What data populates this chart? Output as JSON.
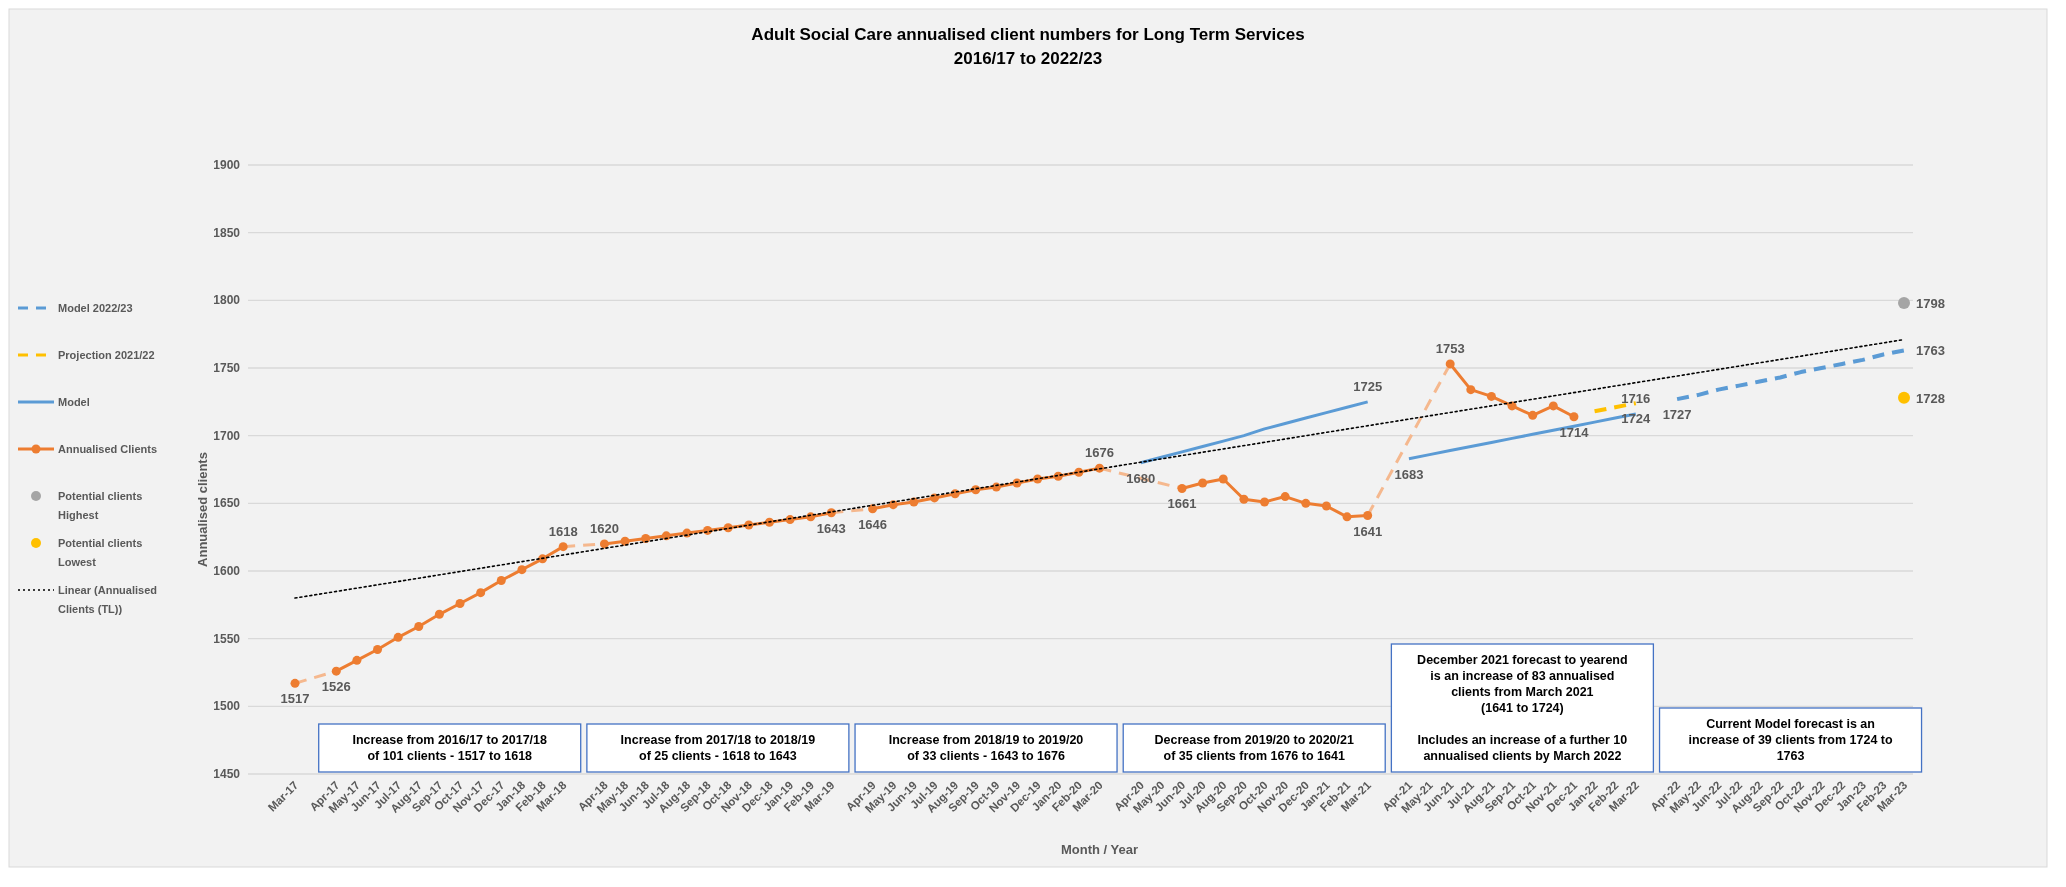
{
  "chart_data": {
    "type": "line",
    "title": "Adult Social Care annualised client numbers for Long Term Services",
    "subtitle": "2016/17 to 2022/23",
    "xlabel": "Month / Year",
    "ylabel": "Annualised clients",
    "categories": [
      "Mar-17",
      null,
      "Apr-17",
      "May-17",
      "Jun-17",
      "Jul-17",
      "Aug-17",
      "Sep-17",
      "Oct-17",
      "Nov-17",
      "Dec-17",
      "Jan-18",
      "Feb-18",
      "Mar-18",
      null,
      "Apr-18",
      "May-18",
      "Jun-18",
      "Jul-18",
      "Aug-18",
      "Sep-18",
      "Oct-18",
      "Nov-18",
      "Dec-18",
      "Jan-19",
      "Feb-19",
      "Mar-19",
      null,
      "Apr-19",
      "May-19",
      "Jun-19",
      "Jul-19",
      "Aug-19",
      "Sep-19",
      "Oct-19",
      "Nov-19",
      "Dec-19",
      "Jan-20",
      "Feb-20",
      "Mar-20",
      null,
      "Apr-20",
      "May-20",
      "Jun-20",
      "Jul-20",
      "Aug-20",
      "Sep-20",
      "Oct-20",
      "Nov-20",
      "Dec-20",
      "Jan-21",
      "Feb-21",
      "Mar-21",
      null,
      "Apr-21",
      "May-21",
      "Jun-21",
      "Jul-21",
      "Aug-21",
      "Sep-21",
      "Oct-21",
      "Nov-21",
      "Dec-21",
      "Jan-22",
      "Feb-22",
      "Mar-22",
      null,
      "Apr-22",
      "May-22",
      "Jun-22",
      "Jul-22",
      "Aug-22",
      "Sep-22",
      "Oct-22",
      "Nov-22",
      "Dec-22",
      "Jan-23",
      "Feb-23",
      "Mar-23"
    ],
    "series": [
      {
        "name": "Model 2022/23",
        "type": "line",
        "color": "#5b9bd5",
        "line_style": "dashed",
        "values": [
          null,
          null,
          null,
          null,
          null,
          null,
          null,
          null,
          null,
          null,
          null,
          null,
          null,
          null,
          null,
          null,
          null,
          null,
          null,
          null,
          null,
          null,
          null,
          null,
          null,
          null,
          null,
          null,
          null,
          null,
          null,
          null,
          null,
          null,
          null,
          null,
          null,
          null,
          null,
          null,
          null,
          null,
          null,
          null,
          null,
          null,
          null,
          null,
          null,
          null,
          null,
          null,
          null,
          null,
          null,
          null,
          null,
          null,
          null,
          null,
          null,
          null,
          null,
          null,
          null,
          null,
          null,
          1727,
          1730,
          1734,
          1737,
          1740,
          1743,
          1747,
          1750,
          1753,
          1756,
          1760,
          1763
        ],
        "value_labels": [
          null,
          null,
          null,
          null,
          null,
          null,
          null,
          null,
          null,
          null,
          null,
          null,
          null,
          null,
          null,
          null,
          null,
          null,
          null,
          null,
          null,
          null,
          null,
          null,
          null,
          null,
          null,
          null,
          null,
          null,
          null,
          null,
          null,
          null,
          null,
          null,
          null,
          null,
          null,
          null,
          null,
          null,
          null,
          null,
          null,
          null,
          null,
          null,
          null,
          null,
          null,
          null,
          null,
          null,
          null,
          null,
          null,
          null,
          null,
          null,
          null,
          null,
          null,
          null,
          null,
          null,
          null,
          "1727",
          null,
          null,
          null,
          null,
          null,
          null,
          null,
          null,
          null,
          null,
          "1763"
        ]
      },
      {
        "name": "Projection 2021/22",
        "type": "line",
        "color": "#ffc000",
        "line_style": "dashed",
        "values": [
          null,
          null,
          null,
          null,
          null,
          null,
          null,
          null,
          null,
          null,
          null,
          null,
          null,
          null,
          null,
          null,
          null,
          null,
          null,
          null,
          null,
          null,
          null,
          null,
          null,
          null,
          null,
          null,
          null,
          null,
          null,
          null,
          null,
          null,
          null,
          null,
          null,
          null,
          null,
          null,
          null,
          null,
          null,
          null,
          null,
          null,
          null,
          null,
          null,
          null,
          null,
          null,
          null,
          null,
          null,
          null,
          null,
          null,
          null,
          null,
          null,
          null,
          null,
          1718,
          1721,
          1724,
          null,
          null,
          null,
          null,
          null,
          null,
          null,
          null,
          null,
          null,
          null,
          null,
          null
        ],
        "value_labels": [
          null,
          null,
          null,
          null,
          null,
          null,
          null,
          null,
          null,
          null,
          null,
          null,
          null,
          null,
          null,
          null,
          null,
          null,
          null,
          null,
          null,
          null,
          null,
          null,
          null,
          null,
          null,
          null,
          null,
          null,
          null,
          null,
          null,
          null,
          null,
          null,
          null,
          null,
          null,
          null,
          null,
          null,
          null,
          null,
          null,
          null,
          null,
          null,
          null,
          null,
          null,
          null,
          null,
          null,
          null,
          null,
          null,
          null,
          null,
          null,
          null,
          null,
          null,
          null,
          null,
          "1724",
          null,
          null,
          null,
          null,
          null,
          null,
          null,
          null,
          null,
          null,
          null,
          null,
          null
        ]
      },
      {
        "name": "Model",
        "type": "line",
        "color": "#5b9bd5",
        "line_style": "solid",
        "values": [
          null,
          null,
          null,
          null,
          null,
          null,
          null,
          null,
          null,
          null,
          null,
          null,
          null,
          null,
          null,
          null,
          null,
          null,
          null,
          null,
          null,
          null,
          null,
          null,
          null,
          null,
          null,
          null,
          null,
          null,
          null,
          null,
          null,
          null,
          null,
          null,
          null,
          null,
          null,
          null,
          null,
          1680,
          1684,
          1688,
          1692,
          1696,
          1700,
          1705,
          1709,
          1713,
          1717,
          1721,
          1725,
          null,
          1683,
          1686,
          1689,
          1692,
          1695,
          1698,
          1701,
          1704,
          1707,
          1710,
          1713,
          1716,
          null,
          null,
          null,
          null,
          null,
          null,
          null,
          null,
          null,
          null,
          null,
          null,
          null
        ],
        "value_labels": [
          null,
          null,
          null,
          null,
          null,
          null,
          null,
          null,
          null,
          null,
          null,
          null,
          null,
          null,
          null,
          null,
          null,
          null,
          null,
          null,
          null,
          null,
          null,
          null,
          null,
          null,
          null,
          null,
          null,
          null,
          null,
          null,
          null,
          null,
          null,
          null,
          null,
          null,
          null,
          null,
          null,
          "1680",
          null,
          null,
          null,
          null,
          null,
          null,
          null,
          null,
          null,
          null,
          "1725",
          null,
          "1683",
          null,
          null,
          null,
          null,
          null,
          null,
          null,
          null,
          null,
          null,
          "1716",
          null,
          null,
          null,
          null,
          null,
          null,
          null,
          null,
          null,
          null,
          null,
          null,
          null
        ]
      },
      {
        "name": "Annualised Clients",
        "type": "line",
        "color": "#ed7d31",
        "marker": "circle",
        "line_style": "solid",
        "values": [
          1517,
          null,
          1526,
          1534,
          1542,
          1551,
          1559,
          1568,
          1576,
          1584,
          1593,
          1601,
          1609,
          1618,
          null,
          1620,
          1622,
          1624,
          1626,
          1628,
          1630,
          1632,
          1634,
          1636,
          1638,
          1640,
          1643,
          null,
          1646,
          1649,
          1651,
          1654,
          1657,
          1660,
          1662,
          1665,
          1668,
          1670,
          1673,
          1676,
          null,
          null,
          null,
          1661,
          1665,
          1668,
          1653,
          1651,
          1655,
          1650,
          1648,
          1640,
          1641,
          null,
          null,
          null,
          1753,
          1734,
          1729,
          1722,
          1715,
          1722,
          1714,
          null,
          null,
          null,
          null,
          null,
          null,
          null,
          null,
          null,
          null,
          null,
          null,
          null,
          null,
          null,
          null
        ],
        "value_labels": [
          "1517",
          null,
          "1526",
          null,
          null,
          null,
          null,
          null,
          null,
          null,
          null,
          null,
          null,
          "1618",
          null,
          "1620",
          null,
          null,
          null,
          null,
          null,
          null,
          null,
          null,
          null,
          null,
          "1643",
          null,
          "1646",
          null,
          null,
          null,
          null,
          null,
          null,
          null,
          null,
          null,
          null,
          "1676",
          null,
          null,
          null,
          "1661",
          null,
          null,
          null,
          null,
          null,
          null,
          null,
          null,
          "1641",
          null,
          null,
          null,
          "1753",
          null,
          null,
          null,
          null,
          null,
          "1714",
          null,
          null,
          null,
          null,
          null,
          null,
          null,
          null,
          null,
          null,
          null,
          null,
          null,
          null,
          null,
          null
        ]
      },
      {
        "name": "Potential clients Highest",
        "type": "scatter",
        "color": "#a5a5a5",
        "marker": "circle",
        "x": [
          "Mar-23"
        ],
        "values": [
          1798
        ],
        "value_labels": [
          "1798"
        ]
      },
      {
        "name": "Potential clients Lowest",
        "type": "scatter",
        "color": "#ffc000",
        "marker": "circle",
        "x": [
          "Mar-23"
        ],
        "values": [
          1728
        ],
        "value_labels": [
          "1728"
        ]
      },
      {
        "name": "Linear (Annualised Clients (TL))",
        "type": "line",
        "color": "#000000",
        "line_style": "dotted",
        "x": [
          "Mar-17",
          "Mar-23"
        ],
        "values": [
          1580,
          1771
        ]
      }
    ],
    "ylim": [
      1450,
      1900
    ],
    "yticks": [
      1450,
      1500,
      1550,
      1600,
      1650,
      1700,
      1750,
      1800,
      1850,
      1900
    ],
    "grid": "y",
    "legend": "left",
    "annotations": [
      "Increase from 2016/17 to 2017/18\nof 101 clients - 1517 to 1618",
      "Increase from 2017/18 to 2018/19\nof 25 clients - 1618 to 1643",
      "Increase from 2018/19 to 2019/20\nof 33 clients - 1643 to 1676",
      "Decrease from 2019/20 to 2020/21\nof 35 clients from 1676 to 1641",
      "December 2021 forecast to yearend\nis an increase of 83 annualised\nclients from March 2021\n(1641 to 1724)\n\nIncludes an increase of a further 10\nannualised clients by March 2022",
      "Current Model forecast is an\nincrease of 39 clients from 1724 to\n1763"
    ]
  }
}
